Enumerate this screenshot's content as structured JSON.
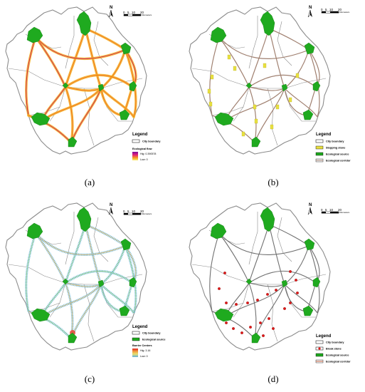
{
  "captions": {
    "a": "(a)",
    "b": "(b)",
    "c": "(c)",
    "d": "(d)"
  },
  "north": "N",
  "scale": {
    "ticks": [
      "0",
      "5",
      "10",
      "20"
    ],
    "unit": "Kilometers"
  },
  "legend": {
    "title": "Legend",
    "city_boundary": "City boundary",
    "ecological_flow": "Ecological flow",
    "flow_high": "Hig: 0.390578",
    "flow_low": "Low: 0",
    "stepping_stone": "Stepping stone",
    "ecological_source": "Ecological source",
    "ecological_corridor": "Ecological corridor",
    "barrier_centers": "Barrier Centers",
    "barrier_high": "Hig: 3.16",
    "barrier_low": "Low: 0",
    "break_point": "Break stone"
  },
  "colors": {
    "boundary": "#8c8c8c",
    "source": "#1faa1f",
    "corridor_a": "#f5b020",
    "corridor_a2": "#c8185a",
    "corridor_b": "#a08070",
    "corridor_c": "#6bb8d8",
    "corridor_d": "#707070",
    "stepping": "#e8e040",
    "break": "#e01818"
  }
}
